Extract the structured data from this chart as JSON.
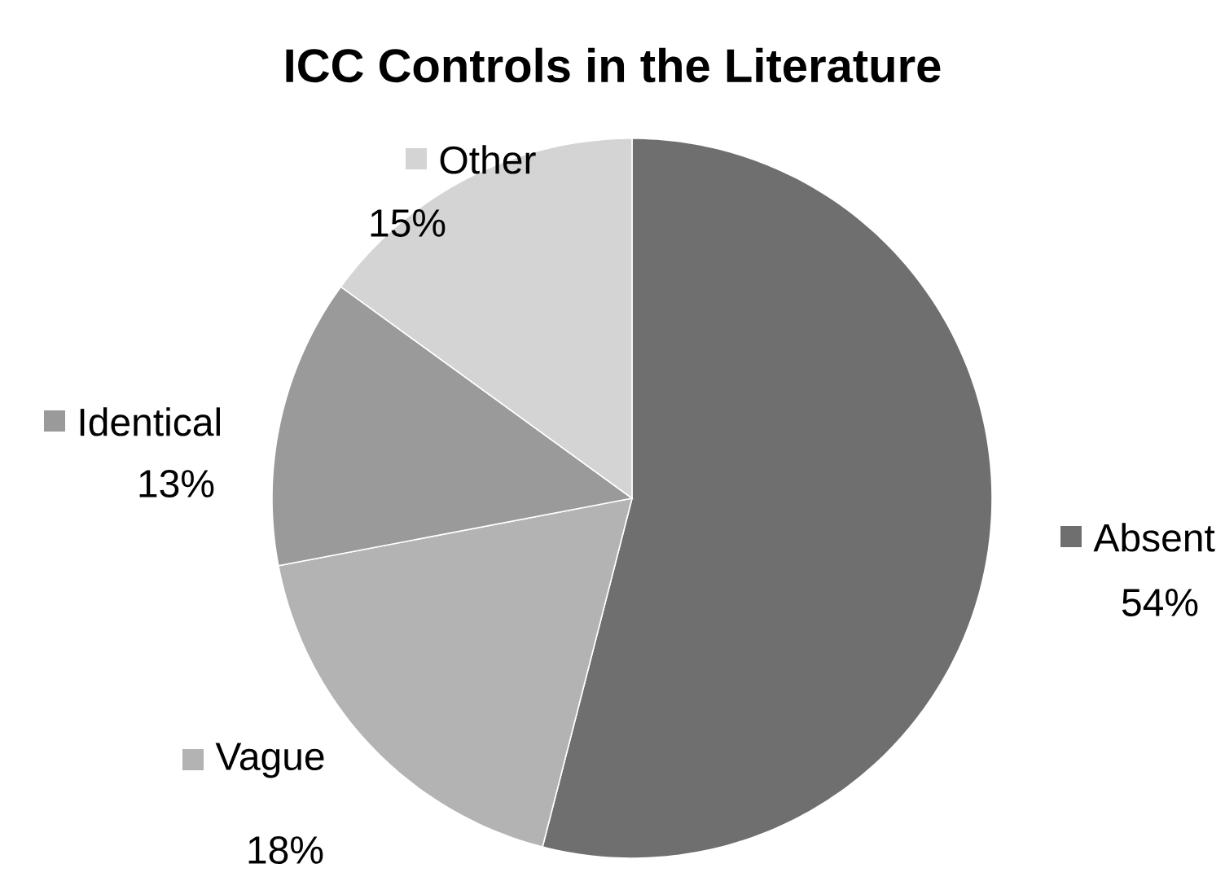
{
  "chart_data": {
    "type": "pie",
    "title": "ICC Controls in the Literature",
    "categories": [
      "Absent",
      "Vague",
      "Identical",
      "Other"
    ],
    "values": [
      54,
      18,
      13,
      15
    ],
    "value_labels": [
      "54%",
      "18%",
      "13%",
      "15%"
    ],
    "colors": [
      "#6f6f6f",
      "#b3b3b3",
      "#9a9a9a",
      "#d4d4d4"
    ],
    "legend": "right"
  }
}
